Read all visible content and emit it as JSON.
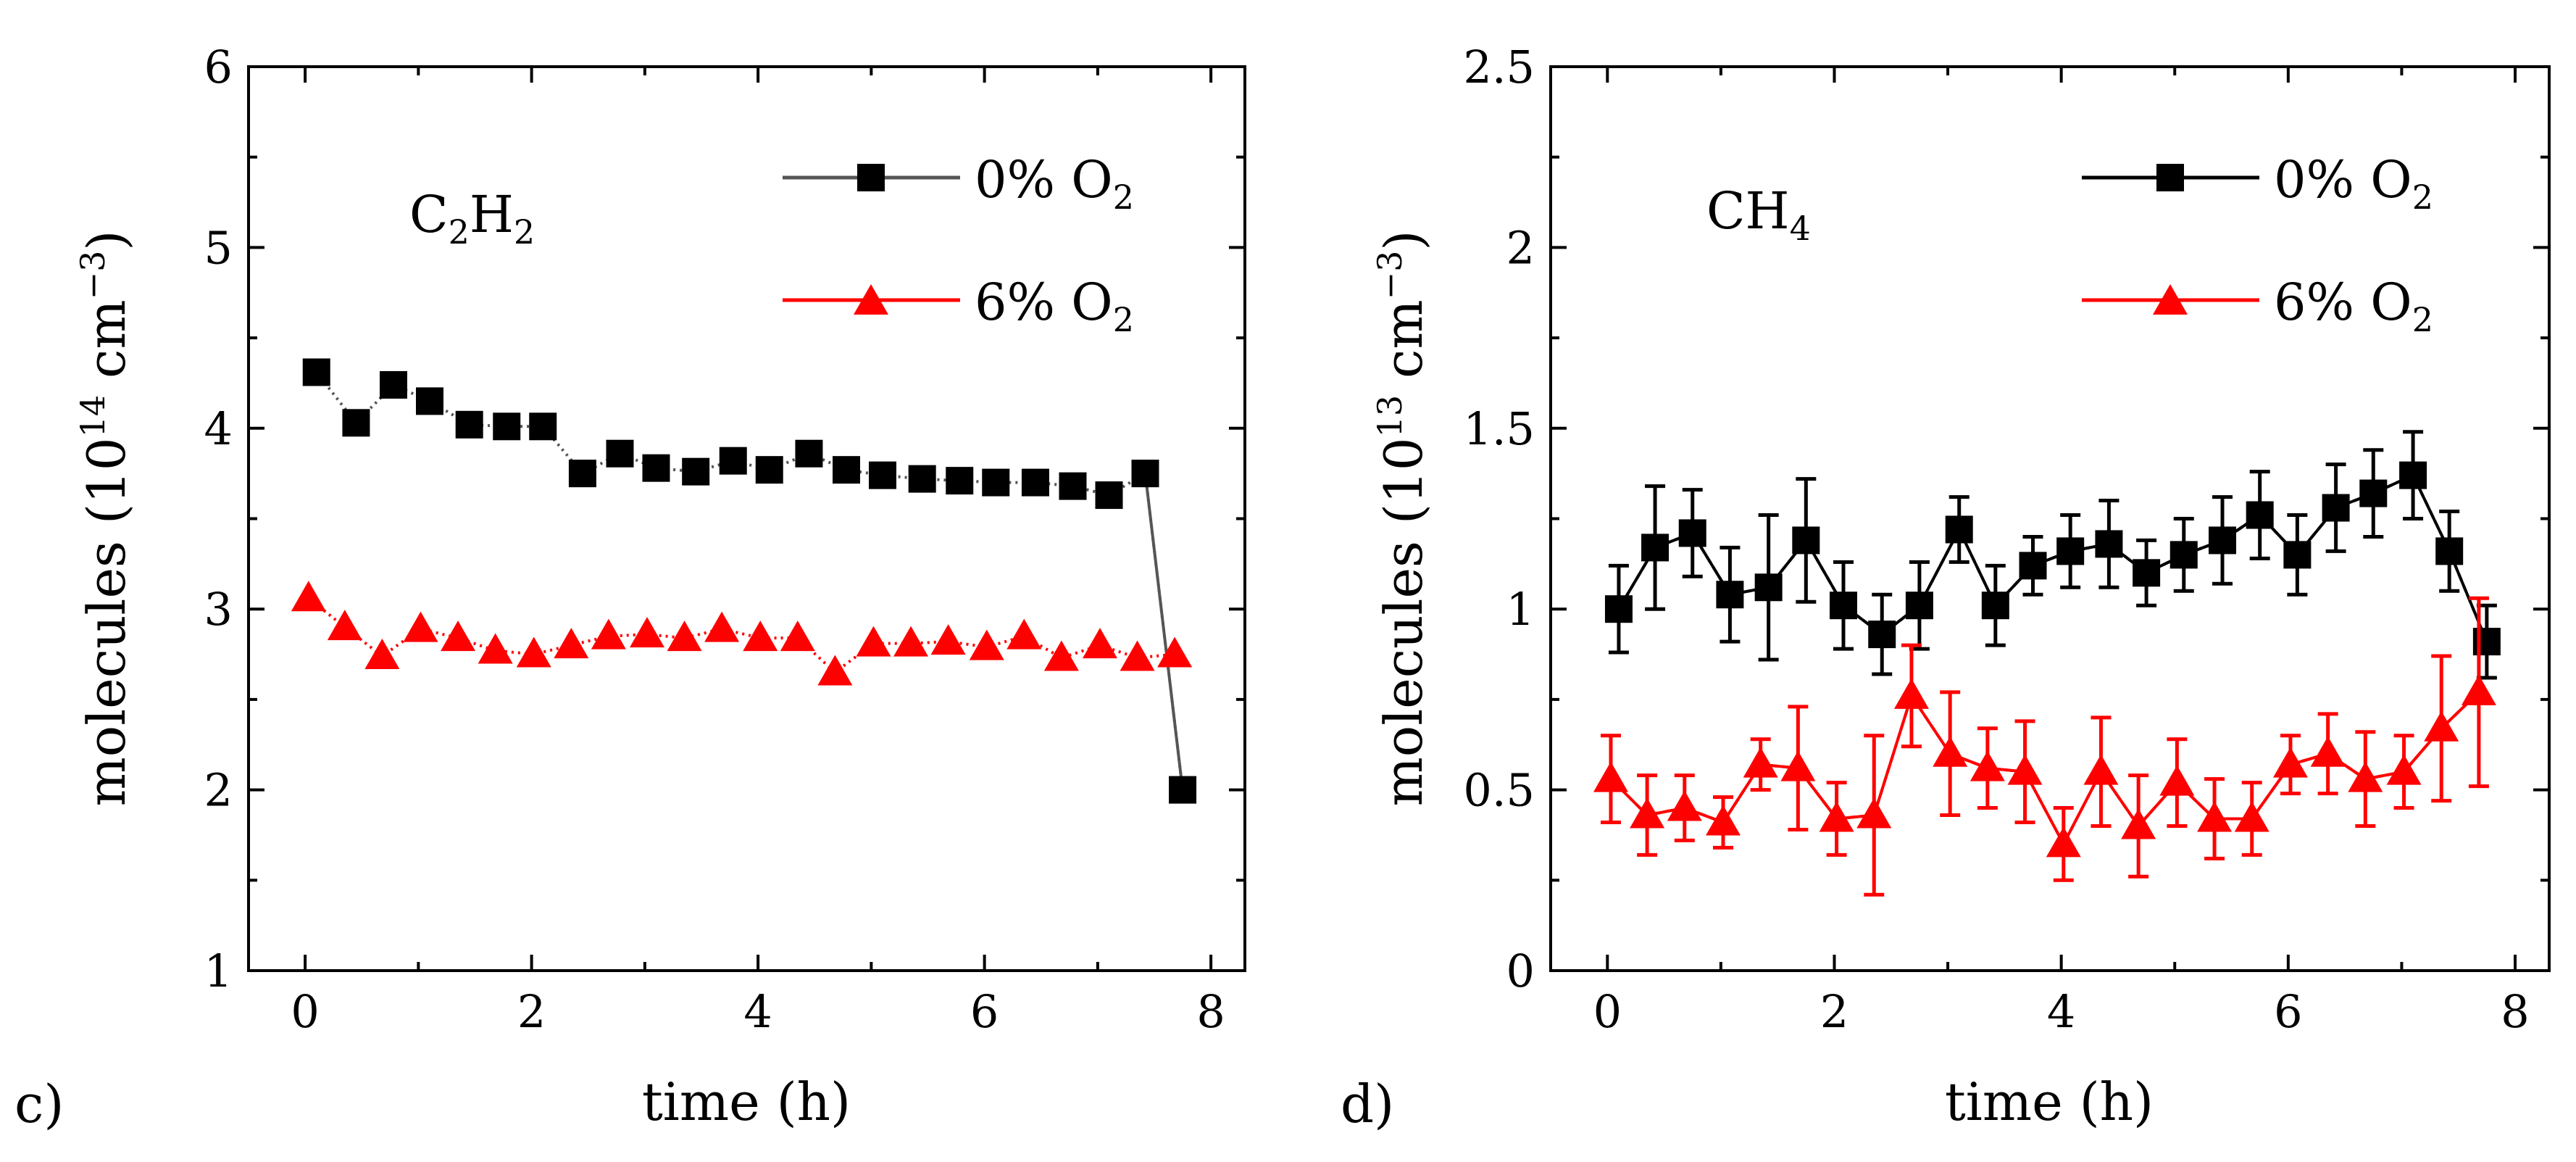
{
  "chart_data": [
    {
      "type": "line",
      "panel_label": "c)",
      "species": {
        "main": "C",
        "sub1": "2",
        "mid": "H",
        "sub2": "2"
      },
      "xlabel": "time (h)",
      "ylabel": {
        "prefix": "molecules (10",
        "exp": "14",
        "unit": " cm",
        "unit_exp": "−3",
        "suffix": ")"
      },
      "xlim": [
        -0.5,
        8.3
      ],
      "ylim": [
        1,
        6
      ],
      "xticks": [
        0,
        2,
        4,
        6,
        8
      ],
      "xtick_labels": [
        "0",
        "2",
        "4",
        "6",
        "8"
      ],
      "yticks": [
        1,
        2,
        3,
        4,
        5,
        6
      ],
      "ytick_labels": [
        "1",
        "2",
        "3",
        "4",
        "5",
        "6"
      ],
      "legend_position": "top-right",
      "series": [
        {
          "name": "0% O2",
          "label": {
            "text": "0% O",
            "sub": "2"
          },
          "color": "#000000",
          "line_color": "#555555",
          "marker": "square",
          "x": [
            0.1,
            0.45,
            0.78,
            1.1,
            1.45,
            1.78,
            2.1,
            2.45,
            2.78,
            3.1,
            3.45,
            3.78,
            4.1,
            4.45,
            4.78,
            5.1,
            5.45,
            5.78,
            6.1,
            6.45,
            6.78,
            7.1,
            7.42,
            7.75
          ],
          "y": [
            4.31,
            4.03,
            4.24,
            4.15,
            4.02,
            4.01,
            4.01,
            3.75,
            3.86,
            3.78,
            3.76,
            3.82,
            3.77,
            3.86,
            3.77,
            3.74,
            3.72,
            3.71,
            3.7,
            3.7,
            3.68,
            3.63,
            3.75,
            2.0
          ]
        },
        {
          "name": "6% O2",
          "label": {
            "text": "6% O",
            "sub": "2"
          },
          "color": "#ff0000",
          "line_color": "#ff0000",
          "marker": "triangle",
          "x": [
            0.03,
            0.35,
            0.68,
            1.02,
            1.35,
            1.68,
            2.02,
            2.35,
            2.68,
            3.02,
            3.35,
            3.68,
            4.02,
            4.35,
            4.68,
            5.02,
            5.35,
            5.68,
            6.02,
            6.35,
            6.68,
            7.02,
            7.35,
            7.68
          ],
          "y": [
            3.06,
            2.9,
            2.74,
            2.89,
            2.84,
            2.77,
            2.75,
            2.8,
            2.85,
            2.86,
            2.84,
            2.89,
            2.84,
            2.84,
            2.65,
            2.81,
            2.81,
            2.82,
            2.79,
            2.85,
            2.73,
            2.8,
            2.73,
            2.75
          ]
        }
      ]
    },
    {
      "type": "line",
      "panel_label": "d)",
      "species": {
        "main": "CH",
        "sub1": "4",
        "mid": "",
        "sub2": ""
      },
      "xlabel": "time (h)",
      "ylabel": {
        "prefix": "molecules (10",
        "exp": "13",
        "unit": " cm",
        "unit_exp": "−3",
        "suffix": ")"
      },
      "xlim": [
        -0.5,
        8.3
      ],
      "ylim": [
        0,
        2.5
      ],
      "xticks": [
        0,
        2,
        4,
        6,
        8
      ],
      "xtick_labels": [
        "0",
        "2",
        "4",
        "6",
        "8"
      ],
      "yticks": [
        0,
        0.5,
        1,
        1.5,
        2,
        2.5
      ],
      "ytick_labels": [
        "0",
        "0.5",
        "1",
        "1.5",
        "2",
        "2.5"
      ],
      "legend_position": "top-right",
      "series": [
        {
          "name": "0% O2",
          "label": {
            "text": "0% O",
            "sub": "2"
          },
          "color": "#000000",
          "line_color": "#000000",
          "marker": "square",
          "x": [
            0.1,
            0.42,
            0.75,
            1.08,
            1.42,
            1.75,
            2.08,
            2.42,
            2.75,
            3.1,
            3.42,
            3.75,
            4.08,
            4.42,
            4.75,
            5.08,
            5.42,
            5.75,
            6.08,
            6.42,
            6.75,
            7.1,
            7.42,
            7.75
          ],
          "y": [
            1.0,
            1.17,
            1.21,
            1.04,
            1.06,
            1.19,
            1.01,
            0.93,
            1.01,
            1.22,
            1.01,
            1.12,
            1.16,
            1.18,
            1.1,
            1.15,
            1.19,
            1.26,
            1.15,
            1.28,
            1.32,
            1.37,
            1.16,
            0.91
          ],
          "err": [
            0.12,
            0.17,
            0.12,
            0.13,
            0.2,
            0.17,
            0.12,
            0.11,
            0.12,
            0.09,
            0.11,
            0.08,
            0.1,
            0.12,
            0.09,
            0.1,
            0.12,
            0.12,
            0.11,
            0.12,
            0.12,
            0.12,
            0.11,
            0.1
          ]
        },
        {
          "name": "6% O2",
          "label": {
            "text": "6% O",
            "sub": "2"
          },
          "color": "#ff0000",
          "line_color": "#ff0000",
          "marker": "triangle",
          "x": [
            0.03,
            0.35,
            0.68,
            1.02,
            1.35,
            1.68,
            2.02,
            2.35,
            2.68,
            3.02,
            3.35,
            3.68,
            4.02,
            4.35,
            4.68,
            5.02,
            5.35,
            5.68,
            6.02,
            6.35,
            6.68,
            7.02,
            7.35,
            7.68
          ],
          "y": [
            0.53,
            0.43,
            0.45,
            0.41,
            0.57,
            0.56,
            0.42,
            0.43,
            0.76,
            0.6,
            0.56,
            0.55,
            0.35,
            0.55,
            0.4,
            0.52,
            0.42,
            0.42,
            0.57,
            0.6,
            0.53,
            0.55,
            0.67,
            0.77
          ],
          "err": [
            0.12,
            0.11,
            0.09,
            0.07,
            0.07,
            0.17,
            0.1,
            0.22,
            0.14,
            0.17,
            0.11,
            0.14,
            0.1,
            0.15,
            0.14,
            0.12,
            0.11,
            0.1,
            0.08,
            0.11,
            0.13,
            0.1,
            0.2,
            0.26
          ]
        }
      ]
    }
  ]
}
